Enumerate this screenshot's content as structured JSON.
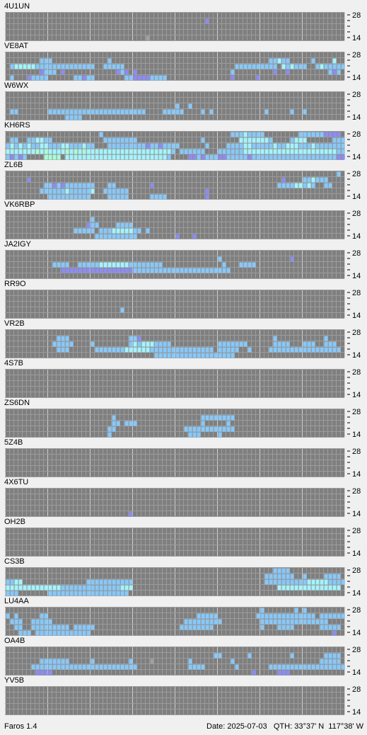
{
  "stations": [
    {
      "name": "4U1UN",
      "cells": [
        [
          1,
          47,
          "1"
        ],
        [
          4,
          33,
          "g"
        ]
      ]
    },
    {
      "name": "VE8AT",
      "cells": [
        [
          1,
          8,
          "222"
        ],
        [
          1,
          24,
          "2"
        ],
        [
          1,
          62,
          "22322"
        ],
        [
          1,
          72,
          "2"
        ],
        [
          1,
          77,
          "3"
        ],
        [
          2,
          1,
          "2333332222"
        ],
        [
          2,
          11,
          "2222222222"
        ],
        [
          2,
          23,
          "22222"
        ],
        [
          2,
          54,
          "2222222222"
        ],
        [
          2,
          65,
          "323222"
        ],
        [
          2,
          73,
          "2322222"
        ],
        [
          3,
          8,
          "1222"
        ],
        [
          3,
          13,
          "1"
        ],
        [
          3,
          26,
          "121"
        ],
        [
          3,
          30,
          "1"
        ],
        [
          3,
          53,
          "2"
        ],
        [
          3,
          63,
          "1"
        ],
        [
          3,
          66,
          "1"
        ],
        [
          3,
          76,
          "212"
        ],
        [
          4,
          1,
          "2"
        ],
        [
          4,
          5,
          "12222"
        ],
        [
          4,
          16,
          "22122"
        ],
        [
          4,
          28,
          "2211112222"
        ],
        [
          4,
          53,
          "1"
        ],
        [
          4,
          59,
          "1"
        ]
      ]
    },
    {
      "name": "W6WX",
      "cells": [
        [
          2,
          40,
          "2"
        ],
        [
          2,
          43,
          "2"
        ],
        [
          3,
          1,
          "22"
        ],
        [
          3,
          10,
          "22222222222222222222222"
        ],
        [
          3,
          37,
          "22222"
        ],
        [
          3,
          46,
          "2"
        ],
        [
          3,
          48,
          "2"
        ],
        [
          3,
          61,
          "2"
        ],
        [
          3,
          67,
          "2"
        ],
        [
          3,
          70,
          "2"
        ],
        [
          4,
          14,
          "2222"
        ]
      ]
    },
    {
      "name": "KH6RS",
      "cells": [
        [
          0,
          22,
          "2"
        ],
        [
          0,
          53,
          "22232222"
        ],
        [
          0,
          69,
          "222222"
        ],
        [
          0,
          75,
          "1111"
        ],
        [
          1,
          1,
          "22"
        ],
        [
          1,
          5,
          "223322"
        ],
        [
          1,
          23,
          "22222222"
        ],
        [
          1,
          46,
          "2"
        ],
        [
          1,
          55,
          "33333332"
        ],
        [
          1,
          67,
          "2333"
        ],
        [
          1,
          77,
          "222"
        ],
        [
          2,
          0,
          "232323223322233222322"
        ],
        [
          2,
          24,
          "22222222212212222"
        ],
        [
          2,
          47,
          "2"
        ],
        [
          2,
          52,
          "2222332222232233322232222222"
        ],
        [
          3,
          0,
          "3333333434333343434333333333333333333332"
        ],
        [
          3,
          41,
          "222222"
        ],
        [
          3,
          50,
          "222222333333333333333333333322"
        ],
        [
          4,
          0,
          "21212"
        ],
        [
          4,
          9,
          "4444"
        ],
        [
          4,
          14,
          "3333333333333333333333332"
        ],
        [
          4,
          43,
          "112122211"
        ],
        [
          4,
          52,
          "2222212222222222222222222211"
        ]
      ]
    },
    {
      "name": "ZL6B",
      "cells": [
        [
          0,
          78,
          "2"
        ],
        [
          1,
          5,
          "1"
        ],
        [
          1,
          65,
          "1"
        ],
        [
          1,
          70,
          "223222"
        ],
        [
          2,
          9,
          "221212222222"
        ],
        [
          2,
          24,
          "22"
        ],
        [
          2,
          34,
          "1"
        ],
        [
          2,
          64,
          "222233232"
        ],
        [
          2,
          75,
          "22"
        ],
        [
          3,
          8,
          "2222223222223"
        ],
        [
          3,
          23,
          "222222"
        ],
        [
          3,
          47,
          "1"
        ],
        [
          4,
          10,
          "2222222222"
        ],
        [
          4,
          24,
          "22222"
        ],
        [
          4,
          34,
          "2222"
        ],
        [
          4,
          47,
          "1"
        ]
      ]
    },
    {
      "name": "VK6RBP",
      "cells": [
        [
          1,
          20,
          "2"
        ],
        [
          2,
          19,
          "122"
        ],
        [
          2,
          26,
          "2222"
        ],
        [
          3,
          16,
          "22222"
        ],
        [
          3,
          22,
          "2223333322"
        ],
        [
          3,
          33,
          "2"
        ],
        [
          4,
          21,
          "2222222222"
        ],
        [
          4,
          40,
          "1"
        ],
        [
          4,
          44,
          "1"
        ]
      ]
    },
    {
      "name": "JA2IGY",
      "cells": [
        [
          1,
          50,
          "2"
        ],
        [
          1,
          67,
          "1"
        ],
        [
          2,
          11,
          "2222"
        ],
        [
          2,
          17,
          "22222333333322222222"
        ],
        [
          2,
          51,
          "2"
        ],
        [
          2,
          55,
          "2222"
        ],
        [
          3,
          13,
          "1111111111111111122222222222222222222222"
        ]
      ]
    },
    {
      "name": "RR9O",
      "cells": [
        [
          3,
          27,
          "2"
        ]
      ]
    },
    {
      "name": "VR2B",
      "cells": [
        [
          1,
          12,
          "222"
        ],
        [
          1,
          29,
          "221"
        ],
        [
          1,
          63,
          "2"
        ],
        [
          1,
          75,
          "2"
        ],
        [
          2,
          11,
          "22222"
        ],
        [
          2,
          20,
          "2"
        ],
        [
          2,
          29,
          "2323332222"
        ],
        [
          2,
          50,
          "2222222"
        ],
        [
          2,
          63,
          "2222"
        ],
        [
          2,
          70,
          "222"
        ],
        [
          2,
          75,
          "222"
        ],
        [
          3,
          12,
          "222"
        ],
        [
          3,
          21,
          "2222222333333222222222222222"
        ],
        [
          3,
          50,
          "22222"
        ],
        [
          3,
          57,
          "2"
        ],
        [
          3,
          62,
          "22222222222222222"
        ],
        [
          4,
          35,
          "2222222222222222"
        ],
        [
          4,
          51,
          "222"
        ]
      ]
    },
    {
      "name": "4S7B",
      "cells": []
    },
    {
      "name": "ZS6DN",
      "cells": [
        [
          1,
          25,
          "2"
        ],
        [
          1,
          46,
          "22222222"
        ],
        [
          2,
          25,
          "22"
        ],
        [
          2,
          28,
          "222"
        ],
        [
          2,
          46,
          "2"
        ],
        [
          2,
          52,
          "2"
        ],
        [
          3,
          24,
          "22"
        ],
        [
          3,
          42,
          "222222222222"
        ],
        [
          4,
          24,
          "2"
        ],
        [
          4,
          43,
          "222"
        ],
        [
          4,
          50,
          "2"
        ]
      ]
    },
    {
      "name": "5Z4B",
      "cells": []
    },
    {
      "name": "4X6TU",
      "cells": [
        [
          4,
          29,
          "1"
        ]
      ]
    },
    {
      "name": "OH2B",
      "cells": []
    },
    {
      "name": "CS3B",
      "cells": [
        [
          0,
          63,
          "2222"
        ],
        [
          1,
          61,
          "2222222"
        ],
        [
          1,
          70,
          "2"
        ],
        [
          1,
          75,
          "2222"
        ],
        [
          2,
          0,
          "2233"
        ],
        [
          2,
          19,
          "22222222222"
        ],
        [
          2,
          61,
          "2222222222333332222"
        ],
        [
          3,
          0,
          "333333333333322222222222222333"
        ],
        [
          3,
          64,
          "333333333333333"
        ],
        [
          4,
          0,
          "222"
        ],
        [
          4,
          10,
          "2222222222222222222"
        ]
      ]
    },
    {
      "name": "LU4AA",
      "cells": [
        [
          0,
          60,
          "2"
        ],
        [
          0,
          68,
          "2"
        ],
        [
          0,
          70,
          "2"
        ],
        [
          1,
          0,
          "2"
        ],
        [
          1,
          2,
          "2"
        ],
        [
          1,
          8,
          "22"
        ],
        [
          1,
          45,
          "22222"
        ],
        [
          1,
          59,
          "22222222222222"
        ],
        [
          1,
          74,
          "222222"
        ],
        [
          2,
          1,
          "222"
        ],
        [
          2,
          6,
          "22222"
        ],
        [
          2,
          42,
          "222222222"
        ],
        [
          2,
          60,
          "2222222222222222"
        ],
        [
          3,
          2,
          "22"
        ],
        [
          3,
          6,
          "222222222"
        ],
        [
          3,
          16,
          "22222"
        ],
        [
          3,
          41,
          "22222222"
        ],
        [
          3,
          60,
          "2"
        ],
        [
          3,
          64,
          "2222"
        ],
        [
          3,
          74,
          "22222"
        ],
        [
          4,
          3,
          "222"
        ],
        [
          4,
          7,
          "2222222222222"
        ],
        [
          4,
          77,
          "1"
        ]
      ]
    },
    {
      "name": "OA4B",
      "cells": [
        [
          1,
          49,
          "22"
        ],
        [
          1,
          57,
          "2"
        ],
        [
          1,
          67,
          "2"
        ],
        [
          1,
          75,
          "2222"
        ],
        [
          2,
          8,
          "2222222"
        ],
        [
          2,
          20,
          "2"
        ],
        [
          2,
          29,
          "2"
        ],
        [
          2,
          34,
          "g"
        ],
        [
          2,
          43,
          "2"
        ],
        [
          2,
          53,
          "2"
        ],
        [
          2,
          74,
          "22222"
        ],
        [
          3,
          6,
          "2222222222222222222222222"
        ],
        [
          3,
          43,
          "2222"
        ],
        [
          3,
          54,
          "2"
        ],
        [
          3,
          62,
          "222222222222222222"
        ],
        [
          4,
          7,
          "1111"
        ],
        [
          4,
          58,
          "1"
        ],
        [
          4,
          64,
          "111"
        ]
      ]
    },
    {
      "name": "YV5B",
      "cells": []
    }
  ],
  "band_labels": {
    "top": "28",
    "bottom": "14"
  },
  "level_colors": {
    "1": "#8c8cf0",
    "2": "#88c8f8",
    "3": "#a4f4fc",
    "4": "#a8ffd8",
    "g": "#a0a0a0"
  },
  "status": {
    "app": "Faros 1.4",
    "date": "Date: 2025-07-03",
    "qth": "QTH: 33°37' N  117°38' W"
  }
}
